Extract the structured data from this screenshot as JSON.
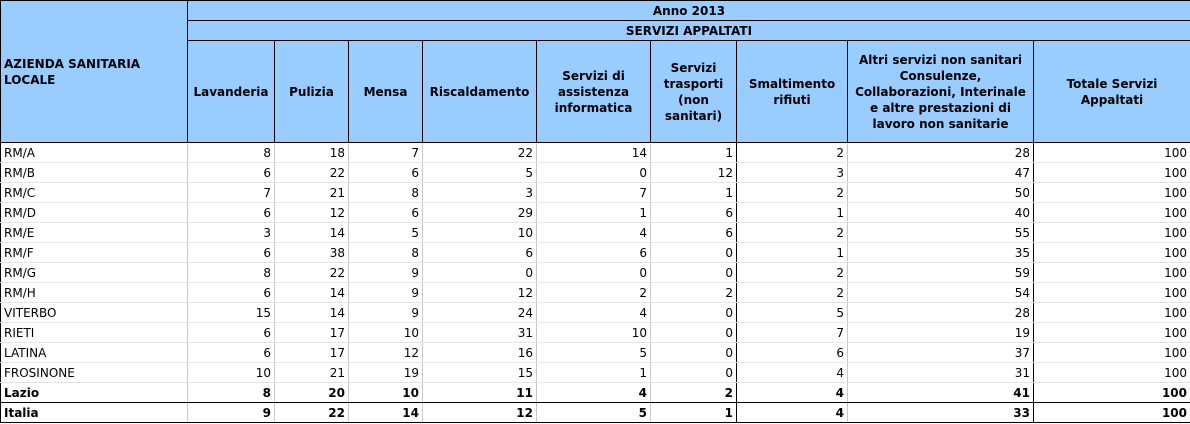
{
  "header": {
    "year": "Anno 2013",
    "group": "SERVIZI APPALTATI",
    "row_label": "AZIENDA SANITARIA LOCALE",
    "columns": [
      "Lavanderia",
      "Pulizia",
      "Mensa",
      "Riscaldamento",
      "Servizi di assistenza informatica",
      "Servizi trasporti (non sanitari)",
      "Smaltimento rifiuti",
      "Altri servizi non sanitari Consulenze, Collaborazioni, Interinale e altre prestazioni di lavoro non sanitarie",
      "Totale Servizi Appaltati"
    ]
  },
  "rows": [
    {
      "label": "RM/A",
      "values": [
        "8",
        "18",
        "7",
        "22",
        "14",
        "1",
        "2",
        "28",
        "100"
      ]
    },
    {
      "label": "RM/B",
      "values": [
        "6",
        "22",
        "6",
        "5",
        "0",
        "12",
        "3",
        "47",
        "100"
      ]
    },
    {
      "label": "RM/C",
      "values": [
        "7",
        "21",
        "8",
        "3",
        "7",
        "1",
        "2",
        "50",
        "100"
      ]
    },
    {
      "label": "RM/D",
      "values": [
        "6",
        "12",
        "6",
        "29",
        "1",
        "6",
        "1",
        "40",
        "100"
      ]
    },
    {
      "label": "RM/E",
      "values": [
        "3",
        "14",
        "5",
        "10",
        "4",
        "6",
        "2",
        "55",
        "100"
      ]
    },
    {
      "label": "RM/F",
      "values": [
        "6",
        "38",
        "8",
        "6",
        "6",
        "0",
        "1",
        "35",
        "100"
      ]
    },
    {
      "label": "RM/G",
      "values": [
        "8",
        "22",
        "9",
        "0",
        "0",
        "0",
        "2",
        "59",
        "100"
      ]
    },
    {
      "label": "RM/H",
      "values": [
        "6",
        "14",
        "9",
        "12",
        "2",
        "2",
        "2",
        "54",
        "100"
      ]
    },
    {
      "label": "VITERBO",
      "values": [
        "15",
        "14",
        "9",
        "24",
        "4",
        "0",
        "5",
        "28",
        "100"
      ]
    },
    {
      "label": "RIETI",
      "values": [
        "6",
        "17",
        "10",
        "31",
        "10",
        "0",
        "7",
        "19",
        "100"
      ]
    },
    {
      "label": "LATINA",
      "values": [
        "6",
        "17",
        "12",
        "16",
        "5",
        "0",
        "6",
        "37",
        "100"
      ]
    },
    {
      "label": "FROSINONE",
      "values": [
        "10",
        "21",
        "19",
        "15",
        "1",
        "0",
        "4",
        "31",
        "100"
      ]
    }
  ],
  "totals": [
    {
      "label": "Lazio",
      "values": [
        "8",
        "20",
        "10",
        "11",
        "4",
        "2",
        "4",
        "41",
        "100"
      ]
    },
    {
      "label": "Italia",
      "values": [
        "9",
        "22",
        "14",
        "12",
        "5",
        "1",
        "4",
        "33",
        "100"
      ]
    }
  ]
}
